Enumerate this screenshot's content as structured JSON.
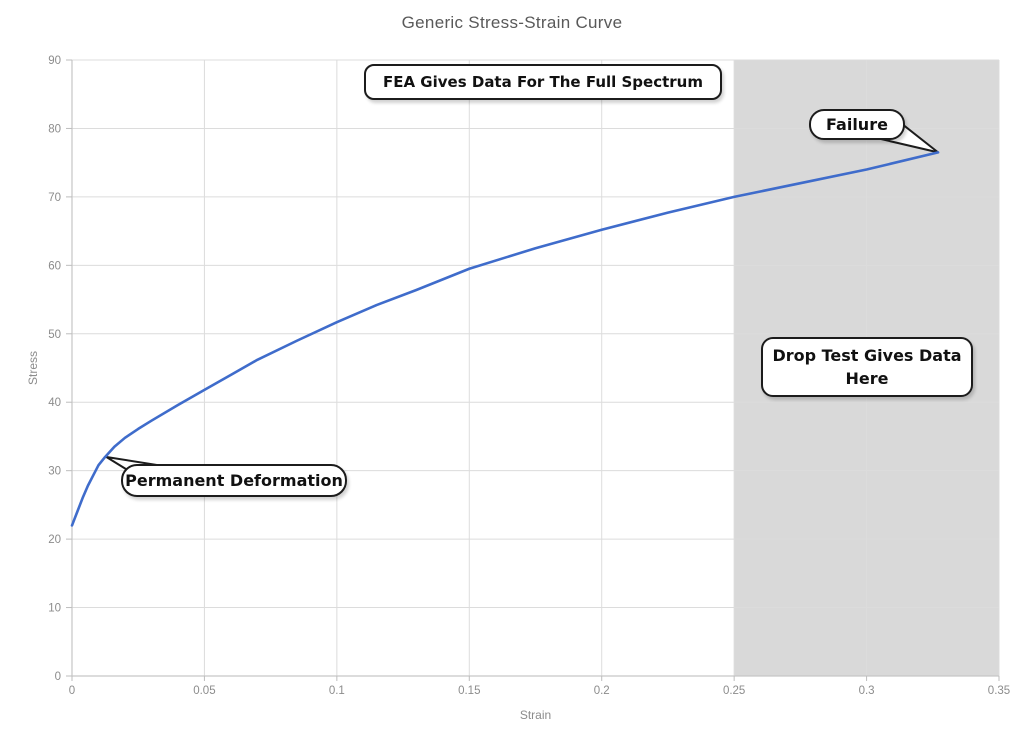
{
  "chart_data": {
    "type": "line",
    "title": "Generic Stress-Strain Curve",
    "xlabel": "Strain",
    "ylabel": "Stress",
    "xlim": [
      0,
      0.35
    ],
    "ylim": [
      0,
      90
    ],
    "grid": true,
    "legend": "none",
    "x_ticks": {
      "values": [
        0,
        0.05,
        0.1,
        0.15,
        0.2,
        0.25,
        0.3,
        0.35
      ],
      "labels": [
        "0",
        "0.05",
        "0.1",
        "0.15",
        "0.2",
        "0.25",
        "0.3",
        "0.35"
      ]
    },
    "y_ticks": {
      "values": [
        0,
        10,
        20,
        30,
        40,
        50,
        60,
        70,
        80,
        90
      ],
      "labels": [
        "0",
        "10",
        "20",
        "30",
        "40",
        "50",
        "60",
        "70",
        "80",
        "90"
      ]
    },
    "colors": {
      "curve": "#3F6CCB",
      "grid": "#dcdcdc",
      "axis": "#c6c6c6",
      "tick": "#bdbdbd",
      "tick_label": "#8c8c8c",
      "title": "#595959",
      "region": "#d9d9d9",
      "callout_border": "#1c1c1c"
    },
    "shaded_region": {
      "x0": 0.25,
      "x1": 0.35,
      "color": "#d9d9d9"
    },
    "series": [
      {
        "name": "Stress-Strain",
        "color": "#3F6CCB",
        "points": [
          [
            0,
            22
          ],
          [
            0.002,
            24
          ],
          [
            0.004,
            26
          ],
          [
            0.006,
            27.8
          ],
          [
            0.008,
            29.3
          ],
          [
            0.01,
            30.8
          ],
          [
            0.0125,
            32
          ],
          [
            0.016,
            33.5
          ],
          [
            0.02,
            34.8
          ],
          [
            0.025,
            36.1
          ],
          [
            0.03,
            37.3
          ],
          [
            0.04,
            39.6
          ],
          [
            0.05,
            41.8
          ],
          [
            0.06,
            44
          ],
          [
            0.07,
            46.2
          ],
          [
            0.085,
            49
          ],
          [
            0.1,
            51.7
          ],
          [
            0.115,
            54.2
          ],
          [
            0.13,
            56.4
          ],
          [
            0.15,
            59.5
          ],
          [
            0.175,
            62.5
          ],
          [
            0.2,
            65.2
          ],
          [
            0.225,
            67.7
          ],
          [
            0.25,
            70
          ],
          [
            0.275,
            72
          ],
          [
            0.3,
            74
          ],
          [
            0.327,
            76.5
          ]
        ]
      }
    ],
    "annotations": [
      {
        "id": "fea",
        "text": "FEA Gives Data For The Full Spectrum",
        "shape": "box"
      },
      {
        "id": "failure",
        "text": "Failure",
        "shape": "callout",
        "anchor": {
          "x": 0.327,
          "y": 76.5
        }
      },
      {
        "id": "drop-test",
        "text": "Drop Test Gives Data Here",
        "shape": "box"
      },
      {
        "id": "permanent-deformation",
        "text": "Permanent Deformation",
        "shape": "callout",
        "anchor": {
          "x": 0.013,
          "y": 32
        }
      }
    ]
  }
}
